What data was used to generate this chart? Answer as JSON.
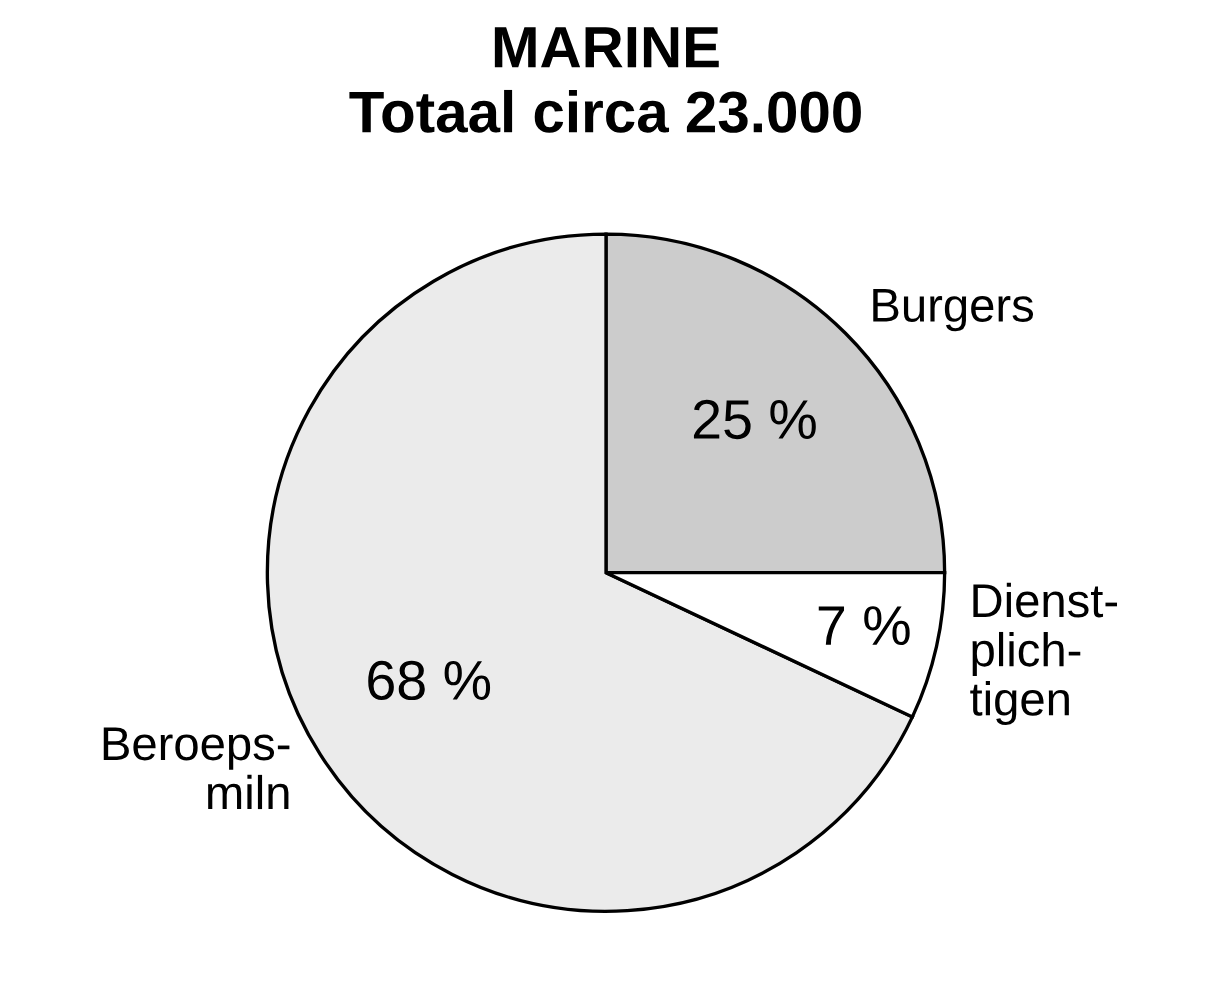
{
  "chart_data": {
    "type": "pie",
    "title": "MARINE\nTotaal circa 23.000",
    "categories": [
      "Burgers",
      "Beroeps-\nmiln",
      "Dienst-\nplich-\ntigen"
    ],
    "values": [
      25,
      68,
      7
    ],
    "value_labels": [
      "25 %",
      "68 %",
      "7 %"
    ],
    "colors": [
      "#cccccc",
      "#ebebeb",
      "#ffffff"
    ]
  }
}
